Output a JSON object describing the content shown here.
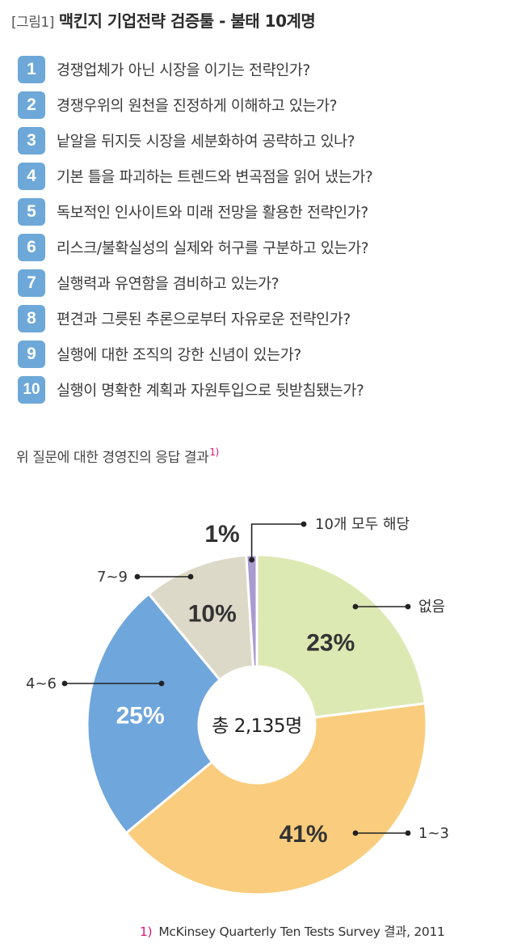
{
  "figure": {
    "tag": "[그림1]",
    "title": "맥킨지 기업전략 검증툴 - 불태 10계명",
    "number_badge_color": "#6da8d8"
  },
  "questions": [
    {
      "num": "1",
      "text": "경쟁업체가 아닌 시장을 이기는 전략인가?"
    },
    {
      "num": "2",
      "text": "경쟁우위의 원천을 진정하게 이해하고 있는가?"
    },
    {
      "num": "3",
      "text": "낱알을 뒤지듯 시장을 세분화하여 공략하고 있나?"
    },
    {
      "num": "4",
      "text": "기본 틀을 파괴하는 트렌드와 변곡점을 읽어 냈는가?"
    },
    {
      "num": "5",
      "text": "독보적인 인사이트와 미래 전망을 활용한 전략인가?"
    },
    {
      "num": "6",
      "text": "리스크/불확실성의 실제와 허구를 구분하고 있는가?"
    },
    {
      "num": "7",
      "text": "실행력과 유연함을 겸비하고 있는가?"
    },
    {
      "num": "8",
      "text": "편견과 그릇된 추론으로부터 자유로운 전략인가?"
    },
    {
      "num": "9",
      "text": "실행에 대한 조직의 강한 신념이 있는가?"
    },
    {
      "num": "10",
      "text": "실행이 명확한 계획과 자원투입으로 뒷받침됐는가?"
    }
  ],
  "subtitle": {
    "text": "위 질문에 대한 경영진의 응답 결과",
    "footnote_ref": "1)"
  },
  "chart_data": {
    "type": "pie",
    "donut": true,
    "center_label": "총 2,135명",
    "start": "12 o'clock, clockwise",
    "slices": [
      {
        "label": "없음",
        "value": 23,
        "value_label": "23%",
        "color": "#dde9b3"
      },
      {
        "label": "1~3",
        "value": 41,
        "value_label": "41%",
        "color": "#f9cd7d"
      },
      {
        "label": "4~6",
        "value": 25,
        "value_label": "25%",
        "color": "#6fa6dc"
      },
      {
        "label": "7~9",
        "value": 10,
        "value_label": "10%",
        "color": "#ddd9c8"
      },
      {
        "label": "10개 모두 해당",
        "value": 1,
        "value_label": "1%",
        "color": "#a99ad0"
      }
    ]
  },
  "footnote": {
    "mark": "1)",
    "text": "McKinsey Quarterly Ten Tests Survey 결과, 2011"
  }
}
